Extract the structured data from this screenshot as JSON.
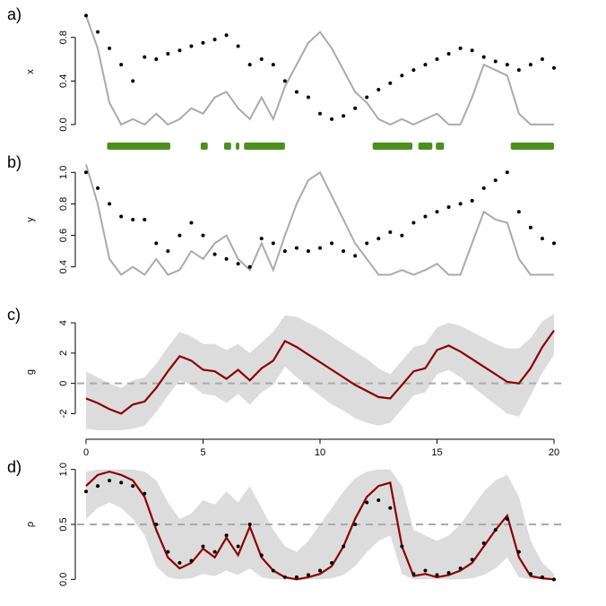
{
  "chart_data": [
    {
      "type": "line",
      "label": "a)",
      "ylabel": "x",
      "xlim": [
        0,
        20
      ],
      "ylim": [
        -0.05,
        1.02
      ],
      "yticks": [
        {
          "value": 0,
          "label": "0.0"
        },
        {
          "value": 0.4,
          "label": "0.4"
        },
        {
          "value": 0.8,
          "label": "0.8"
        }
      ],
      "x": [
        0,
        0.5,
        1,
        1.5,
        2,
        2.5,
        3,
        3.5,
        4,
        4.5,
        5,
        5.5,
        6,
        6.5,
        7,
        7.5,
        8,
        8.5,
        9,
        9.5,
        10,
        10.5,
        11,
        11.5,
        12,
        12.5,
        13,
        13.5,
        14,
        14.5,
        15,
        15.5,
        16,
        16.5,
        17,
        17.5,
        18,
        18.5,
        19,
        19.5,
        20
      ],
      "series": [
        {
          "style": "line",
          "color": "#aaaaaa",
          "values": [
            1.0,
            0.7,
            0.2,
            0.0,
            0.05,
            0.0,
            0.1,
            0.0,
            0.05,
            0.15,
            0.1,
            0.25,
            0.3,
            0.15,
            0.05,
            0.25,
            0.05,
            0.35,
            0.55,
            0.75,
            0.85,
            0.7,
            0.5,
            0.3,
            0.2,
            0.05,
            0.0,
            0.05,
            0.0,
            0.05,
            0.1,
            0.0,
            0.0,
            0.25,
            0.55,
            0.5,
            0.45,
            0.1,
            0.0,
            0.0,
            0.0
          ]
        },
        {
          "style": "points",
          "color": "#000000",
          "values": [
            1.0,
            0.85,
            0.7,
            0.55,
            0.4,
            0.62,
            0.6,
            0.65,
            0.68,
            0.72,
            0.75,
            0.78,
            0.82,
            0.72,
            0.55,
            0.6,
            0.55,
            0.4,
            0.3,
            0.25,
            0.1,
            0.05,
            0.08,
            0.15,
            0.25,
            0.32,
            0.38,
            0.45,
            0.5,
            0.55,
            0.6,
            0.65,
            0.7,
            0.68,
            0.62,
            0.58,
            0.55,
            0.5,
            0.55,
            0.6,
            0.52
          ]
        }
      ],
      "intervals_color": "#4d8f1e",
      "intervals": [
        [
          0.9,
          3.6
        ],
        [
          4.9,
          5.2
        ],
        [
          5.9,
          6.2
        ],
        [
          6.4,
          6.55
        ],
        [
          6.75,
          8.5
        ],
        [
          12.25,
          13.95
        ],
        [
          14.2,
          14.8
        ],
        [
          14.95,
          15.3
        ],
        [
          18.15,
          20
        ]
      ]
    },
    {
      "type": "line",
      "label": "b)",
      "ylabel": "y",
      "xlim": [
        0,
        20
      ],
      "ylim": [
        0.33,
        1.07
      ],
      "yticks": [
        0.4,
        0.6,
        0.8,
        {
          "value": 1,
          "label": "1.0"
        }
      ],
      "x": [
        0,
        0.5,
        1,
        1.5,
        2,
        2.5,
        3,
        3.5,
        4,
        4.5,
        5,
        5.5,
        6,
        6.5,
        7,
        7.5,
        8,
        8.5,
        9,
        9.5,
        10,
        10.5,
        11,
        11.5,
        12,
        12.5,
        13,
        13.5,
        14,
        14.5,
        15,
        15.5,
        16,
        16.5,
        17,
        17.5,
        18,
        18.5,
        19,
        19.5,
        20
      ],
      "series": [
        {
          "style": "line",
          "color": "#aaaaaa",
          "values": [
            1.05,
            0.8,
            0.45,
            0.35,
            0.4,
            0.35,
            0.45,
            0.35,
            0.38,
            0.5,
            0.45,
            0.55,
            0.6,
            0.45,
            0.38,
            0.55,
            0.38,
            0.6,
            0.8,
            0.95,
            1.0,
            0.85,
            0.7,
            0.55,
            0.45,
            0.35,
            0.35,
            0.38,
            0.35,
            0.38,
            0.42,
            0.35,
            0.35,
            0.55,
            0.75,
            0.7,
            0.68,
            0.45,
            0.35,
            0.35,
            0.35
          ]
        },
        {
          "style": "points",
          "color": "#000000",
          "values": [
            1.0,
            0.9,
            0.8,
            0.72,
            0.7,
            0.7,
            0.55,
            0.5,
            0.6,
            0.68,
            0.6,
            0.48,
            0.45,
            0.42,
            0.4,
            0.58,
            0.55,
            0.5,
            0.52,
            0.5,
            0.52,
            0.55,
            0.5,
            0.47,
            0.55,
            0.58,
            0.62,
            0.6,
            0.68,
            0.72,
            0.75,
            0.78,
            0.8,
            0.82,
            0.9,
            0.95,
            1.0,
            0.75,
            0.65,
            0.58,
            0.55
          ]
        }
      ]
    },
    {
      "type": "line",
      "label": "c)",
      "ylabel": "g",
      "xlim": [
        0,
        20
      ],
      "ylim": [
        -3.1,
        4.6
      ],
      "yticks": [
        -2,
        0,
        2,
        4
      ],
      "xticks": [
        0,
        5,
        10,
        15,
        20
      ],
      "reference": 0,
      "x": [
        0,
        0.5,
        1,
        1.5,
        2,
        2.5,
        3,
        3.5,
        4,
        4.5,
        5,
        5.5,
        6,
        6.5,
        7,
        7.5,
        8,
        8.5,
        9,
        9.5,
        10,
        10.5,
        11,
        11.5,
        12,
        12.5,
        13,
        13.5,
        14,
        14.5,
        15,
        15.5,
        16,
        16.5,
        17,
        17.5,
        18,
        18.5,
        19,
        19.5,
        20
      ],
      "series": [
        {
          "style": "band",
          "color": "#dcdcdc",
          "upper": [
            0.8,
            0.4,
            0.0,
            -0.3,
            0.2,
            0.4,
            1.3,
            2.4,
            3.4,
            3.1,
            2.6,
            2.6,
            2.2,
            2.6,
            2.0,
            2.7,
            3.4,
            4.5,
            4.4,
            4.0,
            3.6,
            3.1,
            2.6,
            2.1,
            1.6,
            1.0,
            0.6,
            1.5,
            2.4,
            2.6,
            3.7,
            4.0,
            3.8,
            3.4,
            3.0,
            2.6,
            2.3,
            2.3,
            3.0,
            4.1,
            4.6
          ],
          "lower": [
            -3.0,
            -3.1,
            -3.1,
            -3.1,
            -3.0,
            -2.8,
            -1.9,
            -0.8,
            0.2,
            -0.1,
            -0.7,
            -0.8,
            -1.3,
            -0.7,
            -1.4,
            -0.6,
            -0.1,
            1.1,
            0.4,
            -0.2,
            -0.8,
            -1.4,
            -1.8,
            -2.3,
            -2.6,
            -2.8,
            -2.6,
            -1.7,
            -0.8,
            -0.6,
            0.6,
            0.9,
            0.4,
            -0.2,
            -0.8,
            -1.4,
            -2.0,
            -2.2,
            -0.8,
            0.7,
            1.9
          ]
        },
        {
          "style": "line",
          "color": "#8b0000",
          "values": [
            -1.0,
            -1.3,
            -1.7,
            -2.0,
            -1.4,
            -1.2,
            -0.3,
            0.8,
            1.8,
            1.5,
            0.9,
            0.8,
            0.3,
            0.9,
            0.2,
            1.0,
            1.5,
            2.8,
            2.4,
            1.9,
            1.4,
            0.9,
            0.4,
            -0.1,
            -0.5,
            -0.9,
            -1.0,
            -0.1,
            0.8,
            1.0,
            2.2,
            2.5,
            2.1,
            1.6,
            1.1,
            0.6,
            0.1,
            0.0,
            1.0,
            2.4,
            3.5
          ]
        }
      ]
    },
    {
      "type": "line",
      "label": "d)",
      "ylabel": "ρ",
      "xlim": [
        0,
        20
      ],
      "ylim": [
        -0.03,
        1.03
      ],
      "yticks": [
        {
          "value": 0,
          "label": "0.0"
        },
        0.5,
        {
          "value": 1,
          "label": "1.0"
        }
      ],
      "reference": 0.5,
      "x": [
        0,
        0.5,
        1,
        1.5,
        2,
        2.5,
        3,
        3.5,
        4,
        4.5,
        5,
        5.5,
        6,
        6.5,
        7,
        7.5,
        8,
        8.5,
        9,
        9.5,
        10,
        10.5,
        11,
        11.5,
        12,
        12.5,
        13,
        13.5,
        14,
        14.5,
        15,
        15.5,
        16,
        16.5,
        17,
        17.5,
        18,
        18.5,
        19,
        19.5,
        20
      ],
      "series": [
        {
          "style": "band",
          "color": "#dcdcdc",
          "upper": [
            0.98,
            1.0,
            1.0,
            1.0,
            1.0,
            0.98,
            0.9,
            0.7,
            0.55,
            0.6,
            0.72,
            0.68,
            0.8,
            0.7,
            0.85,
            0.65,
            0.45,
            0.3,
            0.25,
            0.35,
            0.5,
            0.65,
            0.8,
            0.92,
            0.98,
            1.0,
            1.0,
            0.85,
            0.45,
            0.4,
            0.35,
            0.4,
            0.5,
            0.65,
            0.8,
            0.9,
            0.95,
            0.75,
            0.35,
            0.15,
            0.05
          ],
          "lower": [
            0.55,
            0.65,
            0.7,
            0.65,
            0.55,
            0.4,
            0.12,
            0.02,
            0.0,
            0.01,
            0.05,
            0.03,
            0.08,
            0.04,
            0.1,
            0.02,
            0.0,
            0.0,
            0.0,
            0.0,
            0.0,
            0.01,
            0.04,
            0.12,
            0.25,
            0.35,
            0.4,
            0.05,
            0.0,
            0.0,
            0.0,
            0.0,
            0.0,
            0.01,
            0.04,
            0.1,
            0.2,
            0.02,
            0.0,
            0.0,
            0.0
          ]
        },
        {
          "style": "line",
          "color": "#8b0000",
          "values": [
            0.85,
            0.95,
            0.98,
            0.95,
            0.9,
            0.75,
            0.45,
            0.2,
            0.1,
            0.15,
            0.28,
            0.2,
            0.38,
            0.22,
            0.48,
            0.2,
            0.08,
            0.02,
            0.0,
            0.02,
            0.05,
            0.12,
            0.3,
            0.55,
            0.75,
            0.85,
            0.88,
            0.3,
            0.03,
            0.05,
            0.02,
            0.04,
            0.08,
            0.15,
            0.3,
            0.45,
            0.58,
            0.2,
            0.03,
            0.01,
            0.0
          ]
        },
        {
          "style": "points",
          "color": "#000000",
          "values": [
            0.8,
            0.85,
            0.9,
            0.88,
            0.85,
            0.78,
            0.5,
            0.25,
            0.15,
            0.17,
            0.3,
            0.25,
            0.4,
            0.3,
            0.5,
            0.22,
            0.08,
            0.02,
            0.02,
            0.04,
            0.08,
            0.15,
            0.3,
            0.5,
            0.7,
            0.72,
            0.65,
            0.3,
            0.05,
            0.08,
            0.04,
            0.06,
            0.1,
            0.18,
            0.33,
            0.45,
            0.55,
            0.25,
            0.05,
            0.02,
            0.0
          ]
        }
      ]
    }
  ]
}
